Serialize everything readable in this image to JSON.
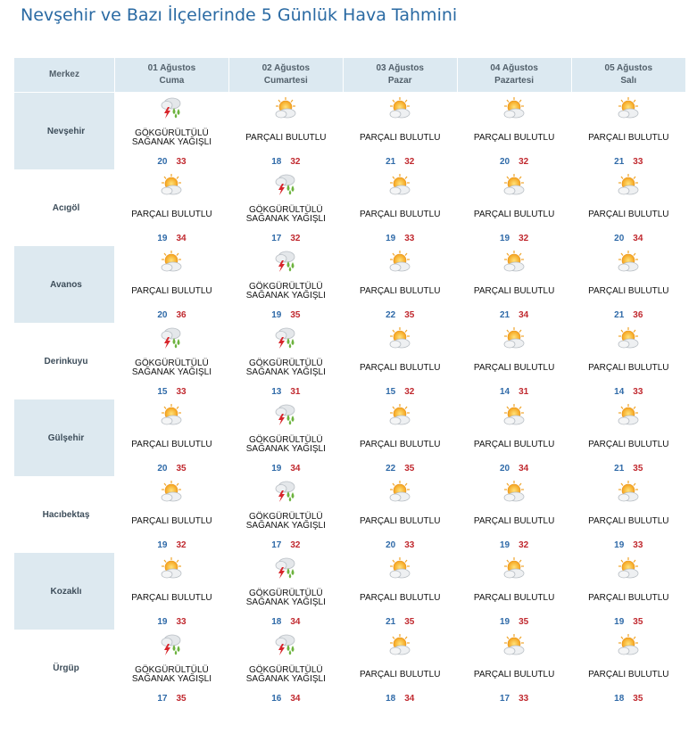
{
  "title": "Nevşehir ve Bazı İlçelerinde 5 Günlük Hava Tahmini",
  "header": {
    "merkez": "Merkez",
    "days": [
      {
        "date": "01 Ağustos",
        "day": "Cuma"
      },
      {
        "date": "02 Ağustos",
        "day": "Cumartesi"
      },
      {
        "date": "03 Ağustos",
        "day": "Pazar"
      },
      {
        "date": "04 Ağustos",
        "day": "Pazartesi"
      },
      {
        "date": "05 Ağustos",
        "day": "Salı"
      }
    ]
  },
  "icons": {
    "storm": "thunderstorm-rain-icon",
    "cloudy": "partly-cloudy-icon"
  },
  "colors": {
    "min_temp": "#2f6aa8",
    "max_temp": "#c0282e",
    "header_bg": "#dce9f1",
    "band_bg": "#edf3f7"
  },
  "locations": [
    {
      "name": "Nevşehir",
      "days": [
        {
          "cond": "storm",
          "desc": "GÖKGÜRÜLTÜLÜ SAĞANAK YAĞIŞLI",
          "min": "20",
          "max": "33"
        },
        {
          "cond": "cloudy",
          "desc": "PARÇALI BULUTLU",
          "min": "18",
          "max": "32"
        },
        {
          "cond": "cloudy",
          "desc": "PARÇALI BULUTLU",
          "min": "21",
          "max": "32"
        },
        {
          "cond": "cloudy",
          "desc": "PARÇALI BULUTLU",
          "min": "20",
          "max": "32"
        },
        {
          "cond": "cloudy",
          "desc": "PARÇALI BULUTLU",
          "min": "21",
          "max": "33"
        }
      ]
    },
    {
      "name": "Acıgöl",
      "days": [
        {
          "cond": "cloudy",
          "desc": "PARÇALI BULUTLU",
          "min": "19",
          "max": "34"
        },
        {
          "cond": "storm",
          "desc": "GÖKGÜRÜLTÜLÜ SAĞANAK YAĞIŞLI",
          "min": "17",
          "max": "32"
        },
        {
          "cond": "cloudy",
          "desc": "PARÇALI BULUTLU",
          "min": "19",
          "max": "33"
        },
        {
          "cond": "cloudy",
          "desc": "PARÇALI BULUTLU",
          "min": "19",
          "max": "32"
        },
        {
          "cond": "cloudy",
          "desc": "PARÇALI BULUTLU",
          "min": "20",
          "max": "34"
        }
      ]
    },
    {
      "name": "Avanos",
      "days": [
        {
          "cond": "cloudy",
          "desc": "PARÇALI BULUTLU",
          "min": "20",
          "max": "36"
        },
        {
          "cond": "storm",
          "desc": "GÖKGÜRÜLTÜLÜ SAĞANAK YAĞIŞLI",
          "min": "19",
          "max": "35"
        },
        {
          "cond": "cloudy",
          "desc": "PARÇALI BULUTLU",
          "min": "22",
          "max": "35"
        },
        {
          "cond": "cloudy",
          "desc": "PARÇALI BULUTLU",
          "min": "21",
          "max": "34"
        },
        {
          "cond": "cloudy",
          "desc": "PARÇALI BULUTLU",
          "min": "21",
          "max": "36"
        }
      ]
    },
    {
      "name": "Derinkuyu",
      "days": [
        {
          "cond": "storm",
          "desc": "GÖKGÜRÜLTÜLÜ SAĞANAK YAĞIŞLI",
          "min": "15",
          "max": "33"
        },
        {
          "cond": "storm",
          "desc": "GÖKGÜRÜLTÜLÜ SAĞANAK YAĞIŞLI",
          "min": "13",
          "max": "31"
        },
        {
          "cond": "cloudy",
          "desc": "PARÇALI BULUTLU",
          "min": "15",
          "max": "32"
        },
        {
          "cond": "cloudy",
          "desc": "PARÇALI BULUTLU",
          "min": "14",
          "max": "31"
        },
        {
          "cond": "cloudy",
          "desc": "PARÇALI BULUTLU",
          "min": "14",
          "max": "33"
        }
      ]
    },
    {
      "name": "Gülşehir",
      "days": [
        {
          "cond": "cloudy",
          "desc": "PARÇALI BULUTLU",
          "min": "20",
          "max": "35"
        },
        {
          "cond": "storm",
          "desc": "GÖKGÜRÜLTÜLÜ SAĞANAK YAĞIŞLI",
          "min": "19",
          "max": "34"
        },
        {
          "cond": "cloudy",
          "desc": "PARÇALI BULUTLU",
          "min": "22",
          "max": "35"
        },
        {
          "cond": "cloudy",
          "desc": "PARÇALI BULUTLU",
          "min": "20",
          "max": "34"
        },
        {
          "cond": "cloudy",
          "desc": "PARÇALI BULUTLU",
          "min": "21",
          "max": "35"
        }
      ]
    },
    {
      "name": "Hacıbektaş",
      "days": [
        {
          "cond": "cloudy",
          "desc": "PARÇALI BULUTLU",
          "min": "19",
          "max": "32"
        },
        {
          "cond": "storm",
          "desc": "GÖKGÜRÜLTÜLÜ SAĞANAK YAĞIŞLI",
          "min": "17",
          "max": "32"
        },
        {
          "cond": "cloudy",
          "desc": "PARÇALI BULUTLU",
          "min": "20",
          "max": "33"
        },
        {
          "cond": "cloudy",
          "desc": "PARÇALI BULUTLU",
          "min": "19",
          "max": "32"
        },
        {
          "cond": "cloudy",
          "desc": "PARÇALI BULUTLU",
          "min": "19",
          "max": "33"
        }
      ]
    },
    {
      "name": "Kozaklı",
      "days": [
        {
          "cond": "cloudy",
          "desc": "PARÇALI BULUTLU",
          "min": "19",
          "max": "33"
        },
        {
          "cond": "storm",
          "desc": "GÖKGÜRÜLTÜLÜ SAĞANAK YAĞIŞLI",
          "min": "18",
          "max": "34"
        },
        {
          "cond": "cloudy",
          "desc": "PARÇALI BULUTLU",
          "min": "21",
          "max": "35"
        },
        {
          "cond": "cloudy",
          "desc": "PARÇALI BULUTLU",
          "min": "19",
          "max": "35"
        },
        {
          "cond": "cloudy",
          "desc": "PARÇALI BULUTLU",
          "min": "19",
          "max": "35"
        }
      ]
    },
    {
      "name": "Ürgüp",
      "days": [
        {
          "cond": "storm",
          "desc": "GÖKGÜRÜLTÜLÜ SAĞANAK YAĞIŞLI",
          "min": "17",
          "max": "35"
        },
        {
          "cond": "storm",
          "desc": "GÖKGÜRÜLTÜLÜ SAĞANAK YAĞIŞLI",
          "min": "16",
          "max": "34"
        },
        {
          "cond": "cloudy",
          "desc": "PARÇALI BULUTLU",
          "min": "18",
          "max": "34"
        },
        {
          "cond": "cloudy",
          "desc": "PARÇALI BULUTLU",
          "min": "17",
          "max": "33"
        },
        {
          "cond": "cloudy",
          "desc": "PARÇALI BULUTLU",
          "min": "18",
          "max": "35"
        }
      ]
    }
  ]
}
